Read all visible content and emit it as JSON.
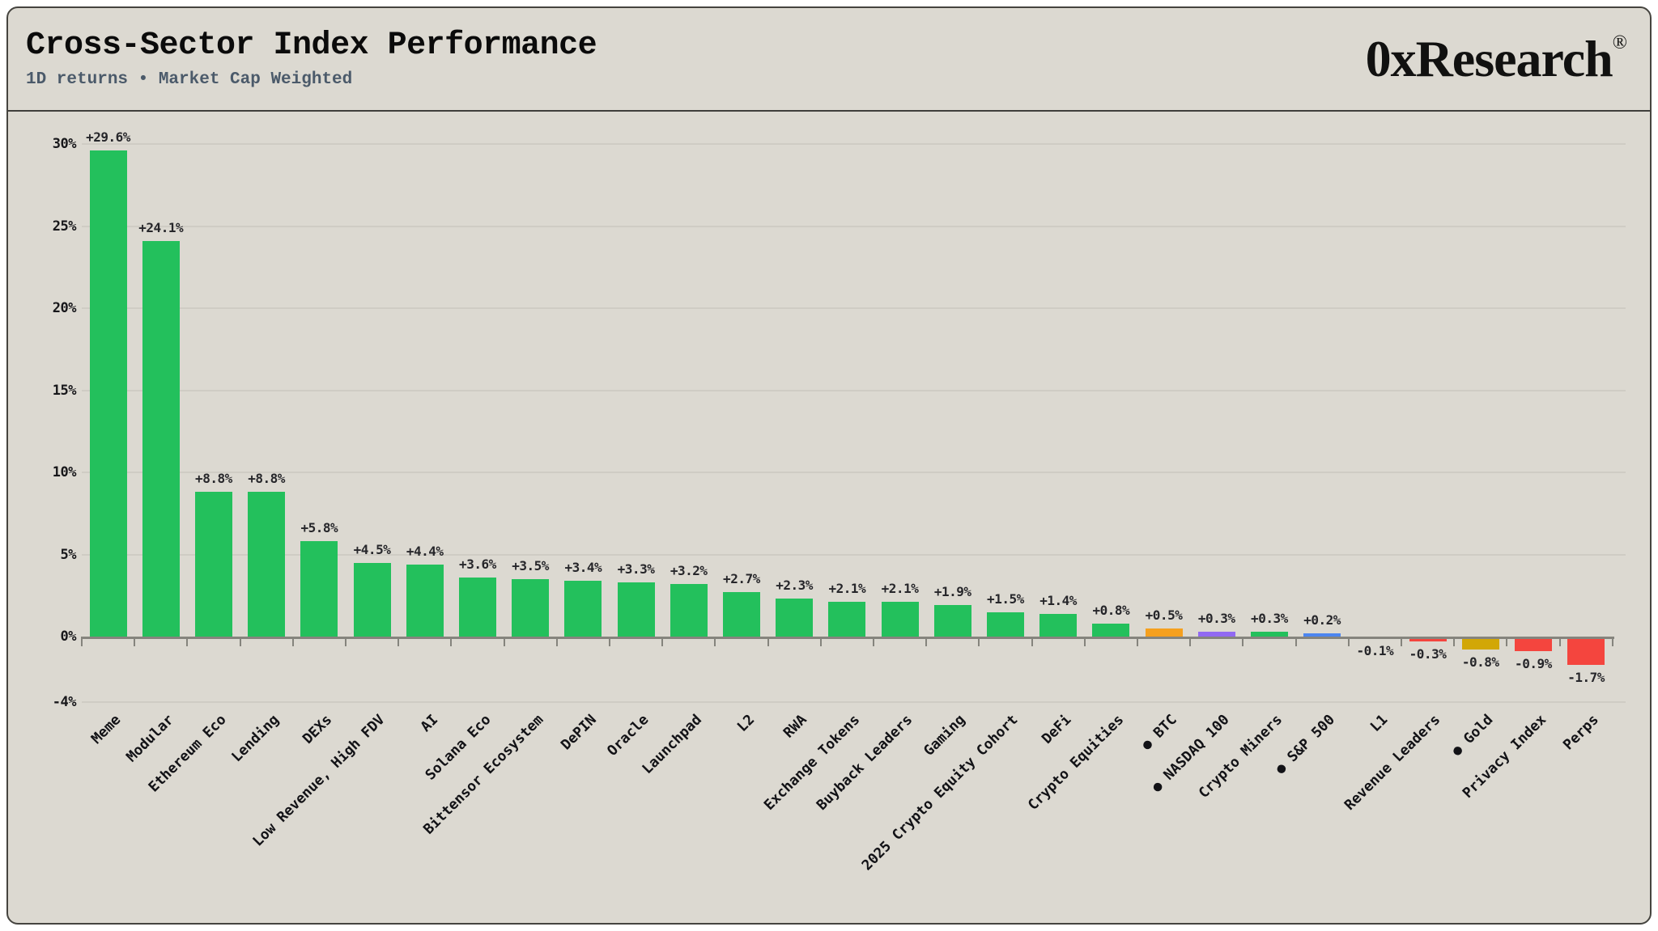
{
  "header": {
    "title": "Cross-Sector Index Performance",
    "subtitle": "1D returns • Market Cap Weighted",
    "brand": "0xResearch",
    "brand_registered": "®"
  },
  "palette": {
    "green": "#23c05c",
    "orange": "#f5a01e",
    "purple": "#9169f2",
    "blue": "#4c86f0",
    "red": "#f4453e",
    "gold": "#d2a706",
    "card_background": "#dcd9d1",
    "grid_color": "#cfccc4",
    "axis_color": "#85847d",
    "subtitle_color": "#4b5a6a"
  },
  "chart_data": {
    "type": "bar",
    "title": "Cross-Sector Index Performance",
    "subtitle": "1D returns • Market Cap Weighted",
    "xlabel": "",
    "ylabel": "",
    "ylim": [
      -4,
      31
    ],
    "grid": "horizontal",
    "legend": "none",
    "y_ticks": [
      {
        "value": 30,
        "label": "30%"
      },
      {
        "value": 25,
        "label": "25%"
      },
      {
        "value": 20,
        "label": "20%"
      },
      {
        "value": 15,
        "label": "15%"
      },
      {
        "value": 10,
        "label": "10%"
      },
      {
        "value": 5,
        "label": "5%"
      },
      {
        "value": 0,
        "label": "0%"
      },
      {
        "value": -4,
        "label": "-4%"
      }
    ],
    "bars": [
      {
        "category": "Meme",
        "value": 29.6,
        "label": "+29.6%",
        "color": "green",
        "benchmark_dot": false
      },
      {
        "category": "Modular",
        "value": 24.1,
        "label": "+24.1%",
        "color": "green",
        "benchmark_dot": false
      },
      {
        "category": "Ethereum Eco",
        "value": 8.8,
        "label": "+8.8%",
        "color": "green",
        "benchmark_dot": false
      },
      {
        "category": "Lending",
        "value": 8.8,
        "label": "+8.8%",
        "color": "green",
        "benchmark_dot": false
      },
      {
        "category": "DEXs",
        "value": 5.8,
        "label": "+5.8%",
        "color": "green",
        "benchmark_dot": false
      },
      {
        "category": "Low Revenue, High FDV",
        "value": 4.5,
        "label": "+4.5%",
        "color": "green",
        "benchmark_dot": false
      },
      {
        "category": "AI",
        "value": 4.4,
        "label": "+4.4%",
        "color": "green",
        "benchmark_dot": false
      },
      {
        "category": "Solana Eco",
        "value": 3.6,
        "label": "+3.6%",
        "color": "green",
        "benchmark_dot": false
      },
      {
        "category": "Bittensor Ecosystem",
        "value": 3.5,
        "label": "+3.5%",
        "color": "green",
        "benchmark_dot": false
      },
      {
        "category": "DePIN",
        "value": 3.4,
        "label": "+3.4%",
        "color": "green",
        "benchmark_dot": false
      },
      {
        "category": "Oracle",
        "value": 3.3,
        "label": "+3.3%",
        "color": "green",
        "benchmark_dot": false
      },
      {
        "category": "Launchpad",
        "value": 3.2,
        "label": "+3.2%",
        "color": "green",
        "benchmark_dot": false
      },
      {
        "category": "L2",
        "value": 2.7,
        "label": "+2.7%",
        "color": "green",
        "benchmark_dot": false
      },
      {
        "category": "RWA",
        "value": 2.3,
        "label": "+2.3%",
        "color": "green",
        "benchmark_dot": false
      },
      {
        "category": "Exchange Tokens",
        "value": 2.1,
        "label": "+2.1%",
        "color": "green",
        "benchmark_dot": false
      },
      {
        "category": "Buyback Leaders",
        "value": 2.1,
        "label": "+2.1%",
        "color": "green",
        "benchmark_dot": false
      },
      {
        "category": "Gaming",
        "value": 1.9,
        "label": "+1.9%",
        "color": "green",
        "benchmark_dot": false
      },
      {
        "category": "2025 Crypto Equity Cohort",
        "value": 1.5,
        "label": "+1.5%",
        "color": "green",
        "benchmark_dot": false
      },
      {
        "category": "DeFi",
        "value": 1.4,
        "label": "+1.4%",
        "color": "green",
        "benchmark_dot": false
      },
      {
        "category": "Crypto Equities",
        "value": 0.8,
        "label": "+0.8%",
        "color": "green",
        "benchmark_dot": false
      },
      {
        "category": "BTC",
        "value": 0.5,
        "label": "+0.5%",
        "color": "orange",
        "benchmark_dot": true
      },
      {
        "category": "NASDAQ 100",
        "value": 0.3,
        "label": "+0.3%",
        "color": "purple",
        "benchmark_dot": true
      },
      {
        "category": "Crypto Miners",
        "value": 0.3,
        "label": "+0.3%",
        "color": "green",
        "benchmark_dot": false
      },
      {
        "category": "S&P 500",
        "value": 0.2,
        "label": "+0.2%",
        "color": "blue",
        "benchmark_dot": true
      },
      {
        "category": "L1",
        "value": -0.1,
        "label": "-0.1%",
        "color": "red",
        "benchmark_dot": false
      },
      {
        "category": "Revenue Leaders",
        "value": -0.3,
        "label": "-0.3%",
        "color": "red",
        "benchmark_dot": false
      },
      {
        "category": "Gold",
        "value": -0.8,
        "label": "-0.8%",
        "color": "gold",
        "benchmark_dot": true
      },
      {
        "category": "Privacy Index",
        "value": -0.9,
        "label": "-0.9%",
        "color": "red",
        "benchmark_dot": false
      },
      {
        "category": "Perps",
        "value": -1.7,
        "label": "-1.7%",
        "color": "red",
        "benchmark_dot": false
      }
    ]
  }
}
